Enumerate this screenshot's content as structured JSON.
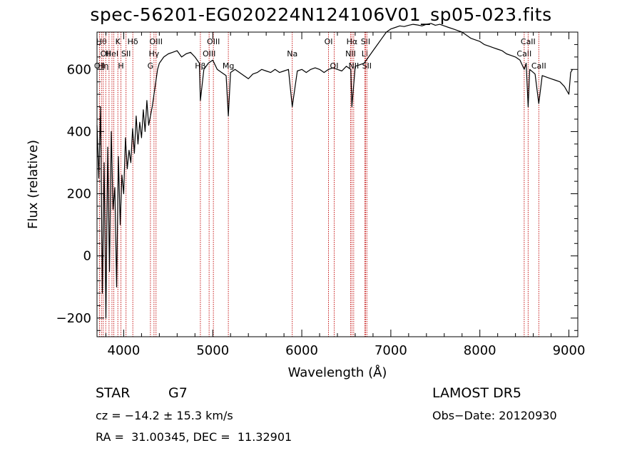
{
  "chart_data": {
    "type": "line",
    "title": "spec-56201-EG020224N124106V01_sp05-023.fits",
    "xlabel": "Wavelength (Å)",
    "ylabel": "Flux (relative)",
    "xlim": [
      3700,
      9100
    ],
    "ylim": [
      -260,
      720
    ],
    "xticks": [
      4000,
      5000,
      6000,
      7000,
      8000,
      9000
    ],
    "yticks": [
      -200,
      0,
      200,
      400,
      600
    ],
    "series": [
      {
        "x": [
          3700,
          3720,
          3740,
          3760,
          3780,
          3800,
          3820,
          3840,
          3860,
          3880,
          3900,
          3920,
          3940,
          3960,
          3980,
          4000,
          4020,
          4040,
          4060,
          4080,
          4100,
          4120,
          4140,
          4160,
          4180,
          4200,
          4220,
          4240,
          4260,
          4280,
          4300,
          4320,
          4340,
          4360,
          4380,
          4400,
          4450,
          4500,
          4550,
          4600,
          4650,
          4700,
          4750,
          4800,
          4850,
          4861,
          4900,
          4950,
          5000,
          5050,
          5100,
          5150,
          5175,
          5200,
          5250,
          5300,
          5350,
          5400,
          5450,
          5500,
          5550,
          5600,
          5650,
          5700,
          5750,
          5800,
          5850,
          5893,
          5950,
          6000,
          6050,
          6100,
          6150,
          6200,
          6250,
          6300,
          6350,
          6400,
          6450,
          6500,
          6550,
          6563,
          6600,
          6650,
          6700,
          6750,
          6800,
          6850,
          6900,
          6950,
          7000,
          7050,
          7100,
          7150,
          7200,
          7250,
          7300,
          7350,
          7400,
          7450,
          7500,
          7550,
          7600,
          7650,
          7700,
          7750,
          7800,
          7850,
          7900,
          7950,
          8000,
          8050,
          8100,
          8150,
          8200,
          8250,
          8300,
          8350,
          8400,
          8450,
          8498,
          8520,
          8542,
          8560,
          8600,
          8620,
          8662,
          8700,
          8750,
          8800,
          8850,
          8900,
          8950,
          8980,
          9000,
          9020,
          9040
        ],
        "values": [
          420,
          250,
          480,
          -120,
          300,
          -200,
          350,
          -50,
          400,
          150,
          220,
          -100,
          320,
          100,
          260,
          200,
          380,
          280,
          340,
          300,
          410,
          330,
          450,
          360,
          430,
          380,
          470,
          400,
          500,
          420,
          450,
          480,
          520,
          560,
          600,
          620,
          640,
          650,
          655,
          660,
          640,
          650,
          655,
          640,
          620,
          500,
          600,
          620,
          630,
          600,
          590,
          580,
          450,
          590,
          600,
          590,
          580,
          570,
          585,
          590,
          600,
          595,
          590,
          600,
          590,
          595,
          600,
          480,
          595,
          600,
          590,
          600,
          605,
          600,
          590,
          600,
          605,
          600,
          595,
          610,
          600,
          480,
          610,
          615,
          620,
          640,
          660,
          680,
          700,
          720,
          730,
          735,
          740,
          738,
          742,
          745,
          743,
          740,
          745,
          748,
          742,
          745,
          740,
          735,
          730,
          725,
          720,
          710,
          700,
          695,
          690,
          680,
          675,
          670,
          665,
          660,
          650,
          645,
          640,
          630,
          600,
          620,
          480,
          600,
          590,
          585,
          490,
          580,
          575,
          570,
          565,
          560,
          545,
          530,
          520,
          590,
          600
        ]
      }
    ],
    "lines": [
      {
        "x": 3728,
        "label": "OII",
        "row": 2
      },
      {
        "x": 3750,
        "label": "Hθ",
        "row": 0
      },
      {
        "x": 3770,
        "label": "Hη",
        "row": 2
      },
      {
        "x": 3798,
        "label": "OII",
        "row": 1
      },
      {
        "x": 3835,
        "label": "",
        "row": 0
      },
      {
        "x": 3868,
        "label": "HeI",
        "row": 1
      },
      {
        "x": 3889,
        "label": "",
        "row": 0
      },
      {
        "x": 3934,
        "label": "K",
        "row": 0
      },
      {
        "x": 3969,
        "label": "H",
        "row": 2
      },
      {
        "x": 4026,
        "label": "SII",
        "row": 1
      },
      {
        "x": 4102,
        "label": "Hδ",
        "row": 0
      },
      {
        "x": 4300,
        "label": "G",
        "row": 2
      },
      {
        "x": 4340,
        "label": "Hγ",
        "row": 1
      },
      {
        "x": 4363,
        "label": "OIII",
        "row": 0
      },
      {
        "x": 4861,
        "label": "Hβ",
        "row": 2
      },
      {
        "x": 4959,
        "label": "OIII",
        "row": 1
      },
      {
        "x": 5007,
        "label": "OIII",
        "row": 0
      },
      {
        "x": 5175,
        "label": "Mg",
        "row": 2
      },
      {
        "x": 5893,
        "label": "Na",
        "row": 1
      },
      {
        "x": 6300,
        "label": "OI",
        "row": 0
      },
      {
        "x": 6364,
        "label": "OI",
        "row": 2
      },
      {
        "x": 6548,
        "label": "NII",
        "row": 1
      },
      {
        "x": 6563,
        "label": "Hα",
        "row": 0
      },
      {
        "x": 6583,
        "label": "NII",
        "row": 2
      },
      {
        "x": 6707,
        "label": "Li",
        "row": 1
      },
      {
        "x": 6716,
        "label": "SII",
        "row": 0
      },
      {
        "x": 6731,
        "label": "SII",
        "row": 2
      },
      {
        "x": 8498,
        "label": "CaII",
        "row": 1
      },
      {
        "x": 8542,
        "label": "CaII",
        "row": 0
      },
      {
        "x": 8662,
        "label": "CaII",
        "row": 2
      }
    ]
  },
  "info": {
    "class": "STAR",
    "subclass": "G7",
    "cz": "cz = −14.2 ± 15.3 km/s",
    "radec": "RA =  31.00345, DEC =  11.32901",
    "survey": "LAMOST DR5",
    "obsdate": "Obs−Date: 20120930"
  }
}
